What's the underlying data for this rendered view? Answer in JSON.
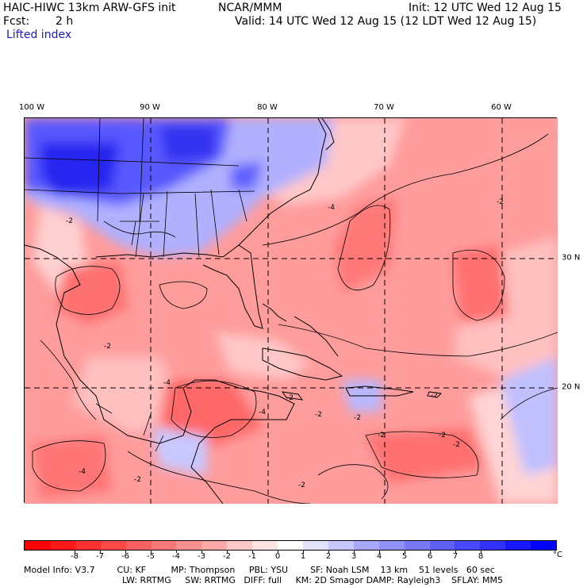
{
  "header": {
    "title": "HAIC-HIWC 13km ARW-GFS init",
    "source": "NCAR/MMM",
    "init": "Init: 12 UTC Wed 12 Aug 15",
    "fcst_label": "Fcst:",
    "fcst_value": "2 h",
    "valid": "Valid: 14 UTC Wed 12 Aug 15 (12 LDT Wed 12 Aug 15)",
    "field": "Lifted index"
  },
  "map": {
    "lon_labels": [
      "100 W",
      "90 W",
      "80 W",
      "70 W",
      "60 W"
    ],
    "lat_labels": [
      "30 N",
      "20 N"
    ],
    "contour_labels": [
      "-4",
      "-2",
      "-4",
      "-2",
      "-2",
      "-4",
      "-2",
      "-2",
      "-2",
      "-2",
      "-2",
      "-2",
      "-4",
      "-2",
      "-2",
      "-2"
    ]
  },
  "colorbar": {
    "labels": [
      "-8",
      "-7",
      "-6",
      "-5",
      "-4",
      "-3",
      "-2",
      "-1",
      "0",
      "1",
      "2",
      "3",
      "4",
      "5",
      "6",
      "7",
      "8"
    ],
    "unit": "°C",
    "colors": [
      "#ff0000",
      "#ff1818",
      "#ff3030",
      "#ff4848",
      "#ff6060",
      "#ff7878",
      "#ff9090",
      "#ffa8a8",
      "#ffc8c8",
      "#ffe4e4",
      "#ffffff",
      "#e4e4ff",
      "#c8c8ff",
      "#a8a8ff",
      "#9090ff",
      "#7878ff",
      "#6060ff",
      "#4848ff",
      "#3030ff",
      "#1818ff",
      "#0000ff"
    ]
  },
  "model_info": {
    "line1": "Model Info: V3.7        CU: KF         MP: Thompson     PBL: YSU        SF: Noah LSM    13 km    51 levels   60 sec",
    "line2": "LW: RRTMG     SW: RRTMG   DIFF: full     KM: 2D Smagor DAMP: Rayleigh3    SFLAY: MM5"
  }
}
